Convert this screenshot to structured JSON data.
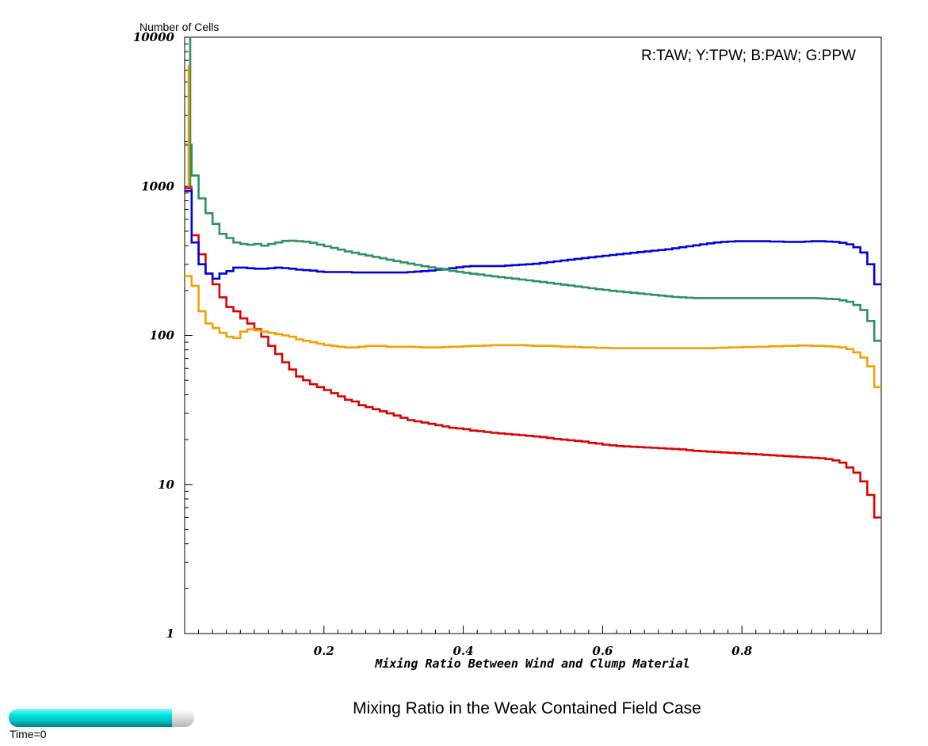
{
  "chart_data": {
    "type": "line",
    "step": true,
    "title": "Mixing Ratio in the Weak Contained Field Case",
    "xlabel": "Mixing Ratio Between Wind and Clump Material",
    "ylabel": "Number of Cells",
    "xlim": [
      0.0,
      1.0
    ],
    "ylim": [
      1,
      10000
    ],
    "yscale": "log",
    "x_ticks": [
      "0.2",
      "0.4",
      "0.6",
      "0.8"
    ],
    "y_ticks": [
      "1",
      "10",
      "100",
      "1000",
      "10000"
    ],
    "legend_text": "R:TAW; Y:TPW; B:PAW; G:PPW",
    "legend_position": "top-right",
    "grid": false,
    "x": [
      0.005,
      0.015,
      0.025,
      0.035,
      0.045,
      0.055,
      0.065,
      0.075,
      0.085,
      0.095,
      0.105,
      0.115,
      0.125,
      0.135,
      0.145,
      0.155,
      0.165,
      0.175,
      0.185,
      0.195,
      0.205,
      0.215,
      0.225,
      0.235,
      0.245,
      0.255,
      0.265,
      0.275,
      0.285,
      0.295,
      0.305,
      0.315,
      0.325,
      0.335,
      0.345,
      0.355,
      0.365,
      0.375,
      0.385,
      0.395,
      0.405,
      0.415,
      0.425,
      0.435,
      0.445,
      0.455,
      0.465,
      0.475,
      0.485,
      0.495,
      0.505,
      0.515,
      0.525,
      0.535,
      0.545,
      0.555,
      0.565,
      0.575,
      0.585,
      0.595,
      0.605,
      0.615,
      0.625,
      0.635,
      0.645,
      0.655,
      0.665,
      0.675,
      0.685,
      0.695,
      0.705,
      0.715,
      0.725,
      0.735,
      0.745,
      0.755,
      0.765,
      0.775,
      0.785,
      0.795,
      0.805,
      0.815,
      0.825,
      0.835,
      0.845,
      0.855,
      0.865,
      0.875,
      0.885,
      0.895,
      0.905,
      0.915,
      0.925,
      0.935,
      0.945,
      0.955,
      0.965,
      0.975,
      0.985,
      0.995
    ],
    "series": [
      {
        "name": "R",
        "color": "#e00000",
        "values": [
          970,
          470,
          350,
          260,
          220,
          180,
          155,
          145,
          130,
          120,
          110,
          98,
          85,
          75,
          66,
          59,
          53,
          50,
          47,
          45,
          43,
          41,
          39,
          37,
          36,
          34,
          33,
          32,
          31,
          30,
          29,
          28,
          27,
          26.5,
          26,
          25.5,
          25,
          24.5,
          24,
          23.8,
          23.5,
          23,
          22.8,
          22.5,
          22.2,
          22,
          21.8,
          21.6,
          21.4,
          21.2,
          21,
          20.8,
          20.5,
          20.2,
          20,
          19.8,
          19.6,
          19.4,
          19,
          18.8,
          18.5,
          18.3,
          18.1,
          18,
          17.9,
          17.8,
          17.7,
          17.6,
          17.5,
          17.4,
          17.3,
          17.2,
          17,
          16.8,
          16.7,
          16.6,
          16.5,
          16.4,
          16.3,
          16.2,
          16.1,
          16,
          15.9,
          15.8,
          15.7,
          15.6,
          15.5,
          15.4,
          15.3,
          15.2,
          15.1,
          15,
          14.8,
          14.5,
          14,
          13,
          12,
          10.5,
          8.5,
          6
        ]
      },
      {
        "name": "Y",
        "color": "#f5a000",
        "values": [
          250,
          215,
          145,
          120,
          112,
          104,
          98,
          96,
          106,
          110,
          108,
          106,
          104,
          102,
          100,
          98,
          94,
          92,
          90,
          88,
          86,
          85,
          84,
          83,
          83,
          84,
          85,
          85,
          85,
          84,
          84,
          84,
          84,
          83.5,
          83,
          83,
          83,
          83.5,
          84,
          84,
          84.5,
          85,
          85,
          85.5,
          86,
          86,
          86,
          86,
          86,
          85.5,
          85,
          85,
          85,
          84.5,
          84,
          84,
          83.5,
          83,
          83,
          82.5,
          82.5,
          82,
          82,
          82,
          82,
          82,
          82,
          82,
          82,
          82,
          82,
          82,
          82,
          82,
          82,
          82,
          82.5,
          82.5,
          83,
          83,
          83.5,
          83.5,
          84,
          84,
          84.5,
          84.5,
          85,
          85,
          85.5,
          85.5,
          85,
          85,
          84.5,
          84,
          83,
          81,
          77,
          71,
          62,
          45
        ]
      },
      {
        "name": "B",
        "color": "#0000e0",
        "values": [
          930,
          420,
          300,
          260,
          240,
          260,
          270,
          285,
          285,
          282,
          280,
          280,
          282,
          285,
          283,
          280,
          276,
          274,
          272,
          268,
          266,
          266,
          266,
          266,
          264,
          264,
          264,
          264,
          264,
          264,
          264,
          264,
          266,
          268,
          270,
          272,
          276,
          278,
          282,
          286,
          290,
          292,
          292,
          292,
          292,
          292,
          294,
          296,
          298,
          300,
          302,
          306,
          310,
          314,
          318,
          322,
          326,
          330,
          334,
          338,
          342,
          346,
          350,
          354,
          358,
          362,
          366,
          370,
          374,
          378,
          384,
          390,
          396,
          402,
          408,
          414,
          420,
          424,
          426,
          428,
          428,
          428,
          428,
          428,
          426,
          426,
          424,
          424,
          424,
          426,
          428,
          428,
          426,
          424,
          418,
          408,
          390,
          360,
          300,
          220
        ]
      },
      {
        "name": "G",
        "color": "#2e9160",
        "values": [
          1900,
          1180,
          830,
          660,
          560,
          480,
          450,
          420,
          410,
          405,
          410,
          400,
          410,
          420,
          430,
          432,
          428,
          425,
          418,
          406,
          396,
          386,
          376,
          366,
          358,
          350,
          343,
          336,
          329,
          322,
          315,
          309,
          303,
          297,
          291,
          286,
          281,
          276,
          271,
          267,
          263,
          259,
          256,
          252,
          249,
          246,
          243,
          240,
          237,
          234,
          231,
          228,
          225,
          222,
          219,
          216,
          213,
          210,
          207,
          204,
          202,
          199,
          197,
          195,
          193,
          191,
          189,
          187,
          185,
          183,
          181,
          180,
          179,
          178,
          178,
          178,
          178,
          178,
          178,
          178,
          178,
          178,
          178,
          178,
          178,
          178,
          178,
          178,
          178,
          178,
          178,
          177,
          176,
          175,
          172,
          168,
          160,
          148,
          125,
          92
        ]
      }
    ]
  },
  "time_slider": {
    "label": "Time=0",
    "fraction": 0.88
  }
}
